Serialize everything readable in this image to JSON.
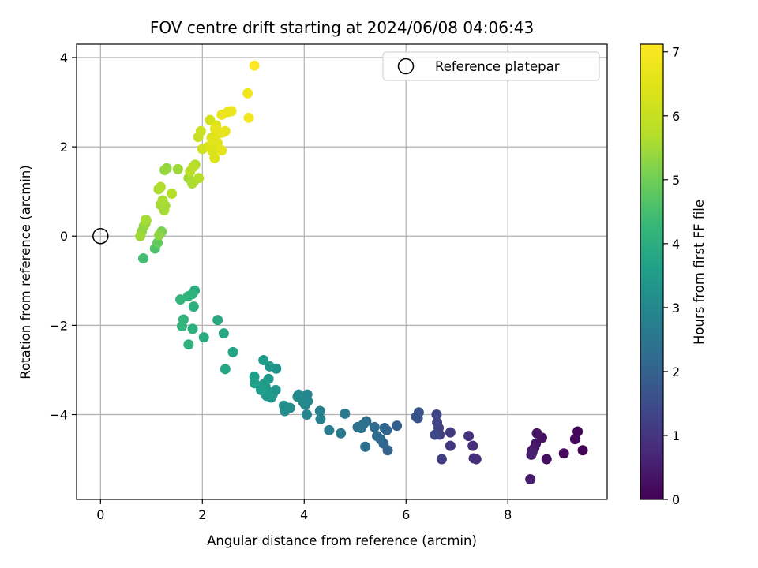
{
  "chart_data": {
    "type": "scatter",
    "title": "FOV centre drift starting at 2024/06/08 04:06:43",
    "xlabel": "Angular distance from reference (arcmin)",
    "ylabel": "Rotation from reference (arcmin)",
    "xlim": [
      -0.47,
      9.95
    ],
    "ylim": [
      -5.9,
      4.3
    ],
    "xticks": [
      0,
      2,
      4,
      6,
      8
    ],
    "yticks": [
      -4,
      -2,
      0,
      2,
      4
    ],
    "xtick_labels": [
      "0",
      "2",
      "4",
      "6",
      "8"
    ],
    "ytick_labels": [
      "−4",
      "−2",
      "0",
      "2",
      "4"
    ],
    "grid": true,
    "legend": {
      "placement": "top-right",
      "entries": [
        {
          "label": "Reference platepar",
          "marker": "open-circle"
        }
      ]
    },
    "reference_point": {
      "x": 0,
      "y": 0
    },
    "colorbar": {
      "label": "Hours from first FF file",
      "colormap": "viridis",
      "range": [
        0,
        7.12
      ],
      "ticks": [
        0,
        1,
        2,
        3,
        4,
        5,
        6,
        7
      ],
      "tick_labels": [
        "0",
        "1",
        "2",
        "3",
        "4",
        "5",
        "6",
        "7"
      ]
    },
    "series": [
      {
        "x": [
          9.47,
          9.37,
          9.32,
          9.1,
          8.76,
          8.67,
          8.57,
          8.55,
          8.52,
          8.48,
          8.46,
          8.44,
          8.48,
          7.38,
          7.33,
          7.31,
          7.23,
          6.87,
          6.87,
          6.7,
          6.66,
          6.64,
          6.61,
          6.6,
          6.57,
          6.23,
          6.25,
          6.2,
          5.82,
          5.64,
          5.62,
          5.58,
          5.56,
          5.5,
          5.43,
          5.38,
          5.2,
          5.22,
          5.16,
          5.12,
          5.05,
          4.8,
          4.72,
          4.49,
          4.31,
          4.32,
          4.05,
          4.06,
          4.07,
          4.02,
          3.98,
          3.92,
          3.89,
          3.87,
          3.72,
          3.62,
          3.6,
          3.45,
          3.44,
          3.38,
          3.35,
          3.32,
          3.3,
          3.28,
          3.26,
          3.24,
          3.22,
          3.2,
          3.15,
          3.03,
          3.02,
          2.6,
          2.45,
          2.42,
          2.3,
          2.03,
          1.85,
          1.83,
          1.81,
          1.8,
          1.73,
          1.72,
          1.63,
          1.6,
          1.57,
          0.84,
          0.89,
          0.78,
          0.81,
          0.85,
          0.88,
          0.9,
          1.07,
          1.12,
          1.2,
          1.15,
          1.18,
          1.25,
          1.22,
          1.27,
          1.14,
          1.18,
          1.4,
          1.3,
          1.26,
          1.52,
          1.73,
          1.8,
          1.83,
          1.86,
          1.93,
          1.76,
          1.82,
          1.92,
          1.97,
          2.0,
          2.11,
          2.15,
          2.18,
          2.2,
          2.24,
          2.27,
          2.3,
          2.33,
          2.38,
          2.4,
          2.45,
          2.5,
          2.57,
          2.89,
          2.91,
          3.02,
          2.38,
          2.25,
          2.2,
          2.15
        ],
        "y": [
          -4.8,
          -4.38,
          -4.55,
          -4.87,
          -5.0,
          -4.52,
          -4.42,
          -4.65,
          -4.75,
          -4.8,
          -4.9,
          -5.45,
          -4.85,
          -5.0,
          -4.98,
          -4.7,
          -4.48,
          -4.7,
          -4.4,
          -5.0,
          -4.45,
          -4.3,
          -4.18,
          -4.0,
          -4.45,
          -4.08,
          -3.95,
          -4.05,
          -4.25,
          -4.8,
          -4.35,
          -4.3,
          -4.65,
          -4.55,
          -4.48,
          -4.28,
          -4.72,
          -4.15,
          -4.22,
          -4.3,
          -4.28,
          -3.98,
          -4.42,
          -4.35,
          -3.92,
          -4.1,
          -4.0,
          -3.55,
          -3.7,
          -3.78,
          -3.72,
          -3.62,
          -3.55,
          -3.6,
          -3.85,
          -3.92,
          -3.8,
          -2.97,
          -3.45,
          -3.55,
          -3.62,
          -2.92,
          -3.2,
          -3.48,
          -3.58,
          -3.38,
          -3.3,
          -2.78,
          -3.45,
          -3.3,
          -3.15,
          -2.6,
          -2.98,
          -2.18,
          -1.88,
          -2.27,
          -1.22,
          -1.58,
          -2.08,
          -1.3,
          -2.43,
          -1.35,
          -1.87,
          -2.02,
          -1.42,
          -0.5,
          0.37,
          0.0,
          0.1,
          0.22,
          0.28,
          0.35,
          -0.28,
          -0.15,
          0.1,
          0.02,
          0.7,
          0.58,
          0.8,
          0.68,
          1.05,
          1.1,
          0.95,
          1.52,
          1.48,
          1.5,
          1.3,
          1.18,
          1.22,
          1.6,
          1.3,
          1.45,
          1.55,
          2.22,
          2.35,
          1.95,
          2.0,
          2.6,
          2.2,
          1.9,
          1.75,
          2.48,
          2.08,
          2.3,
          1.92,
          2.32,
          2.35,
          2.78,
          2.8,
          3.2,
          2.65,
          3.82,
          2.72,
          2.4,
          2.15,
          2.0
        ],
        "hours": [
          0.05,
          0.08,
          0.12,
          0.18,
          0.25,
          0.3,
          0.33,
          0.35,
          0.38,
          0.42,
          0.45,
          0.5,
          0.52,
          0.82,
          0.85,
          0.88,
          0.92,
          1.05,
          1.08,
          1.15,
          1.2,
          1.25,
          1.3,
          1.35,
          1.4,
          1.62,
          1.65,
          1.68,
          1.95,
          2.02,
          2.05,
          2.08,
          2.1,
          2.15,
          2.2,
          2.25,
          2.32,
          2.35,
          2.38,
          2.42,
          2.45,
          2.58,
          2.62,
          2.72,
          2.78,
          2.82,
          2.88,
          2.92,
          2.95,
          2.98,
          3.0,
          3.02,
          3.05,
          3.08,
          3.12,
          3.15,
          3.18,
          3.28,
          3.3,
          3.32,
          3.35,
          3.38,
          3.4,
          3.42,
          3.45,
          3.48,
          3.5,
          3.52,
          3.55,
          3.58,
          3.6,
          3.72,
          3.78,
          3.82,
          3.88,
          3.95,
          4.0,
          4.02,
          4.05,
          4.08,
          4.1,
          4.12,
          4.15,
          4.18,
          4.2,
          4.45,
          5.55,
          5.48,
          5.35,
          5.25,
          5.4,
          5.45,
          4.6,
          4.85,
          5.1,
          5.3,
          5.5,
          5.55,
          5.6,
          5.5,
          5.62,
          5.65,
          5.7,
          5.35,
          5.4,
          5.45,
          5.5,
          5.6,
          5.55,
          5.65,
          5.7,
          5.75,
          5.8,
          6.05,
          6.1,
          6.15,
          6.2,
          6.25,
          6.3,
          6.35,
          6.4,
          6.45,
          6.5,
          6.55,
          6.6,
          6.62,
          6.65,
          6.7,
          6.75,
          6.85,
          6.88,
          7.1,
          6.72,
          6.6,
          6.5,
          6.4
        ]
      }
    ]
  }
}
